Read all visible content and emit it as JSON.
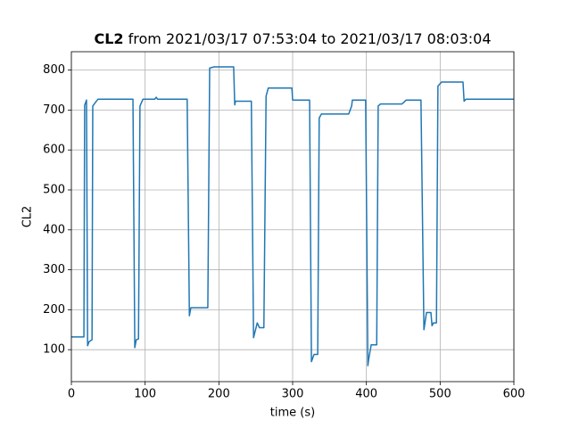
{
  "chart_data": {
    "type": "line",
    "title": {
      "bold": "CL2",
      "text": "from 2021/03/17 07:53:04 to 2021/03/17 08:03:04"
    },
    "xlabel": "time (s)",
    "ylabel": "CL2",
    "xlim": [
      0,
      600
    ],
    "ylim": [
      20,
      846
    ],
    "xticks": [
      0,
      100,
      200,
      300,
      400,
      500,
      600
    ],
    "yticks": [
      100,
      200,
      300,
      400,
      500,
      600,
      700,
      800
    ],
    "grid": true,
    "series": [
      {
        "name": "CL2",
        "color": "#1f77b4",
        "x": [
          0,
          17,
          18,
          20.5,
          22,
          24,
          28,
          29,
          33,
          36,
          83.5,
          86,
          88,
          91,
          93,
          97,
          113,
          115,
          117,
          157,
          160,
          162,
          185,
          187.5,
          193.5,
          220,
          221.5,
          222.5,
          244,
          247,
          249,
          252,
          255,
          261,
          264,
          267,
          299,
          300,
          323,
          325.5,
          329,
          334,
          336,
          339,
          376,
          380,
          381,
          399,
          402,
          403,
          406.5,
          414,
          416,
          419,
          448,
          450,
          454,
          474,
          478,
          481.5,
          487.5,
          489,
          491,
          495,
          497,
          502,
          531,
          532.5,
          535,
          600
        ],
        "values": [
          132,
          132,
          712,
          725,
          110,
          120,
          125,
          710,
          720,
          727,
          727,
          105,
          125,
          127,
          710,
          727,
          727,
          732,
          727,
          727,
          185,
          205,
          205,
          805,
          808,
          808,
          713,
          722,
          722,
          130,
          145,
          167,
          155,
          155,
          735,
          755,
          755,
          725,
          725,
          70,
          88,
          88,
          680,
          690,
          690,
          710,
          725,
          725,
          60,
          75,
          112,
          112,
          710,
          715,
          715,
          718,
          725,
          725,
          150,
          193,
          193,
          160,
          167,
          167,
          760,
          770,
          770,
          722,
          727,
          727
        ]
      }
    ]
  }
}
